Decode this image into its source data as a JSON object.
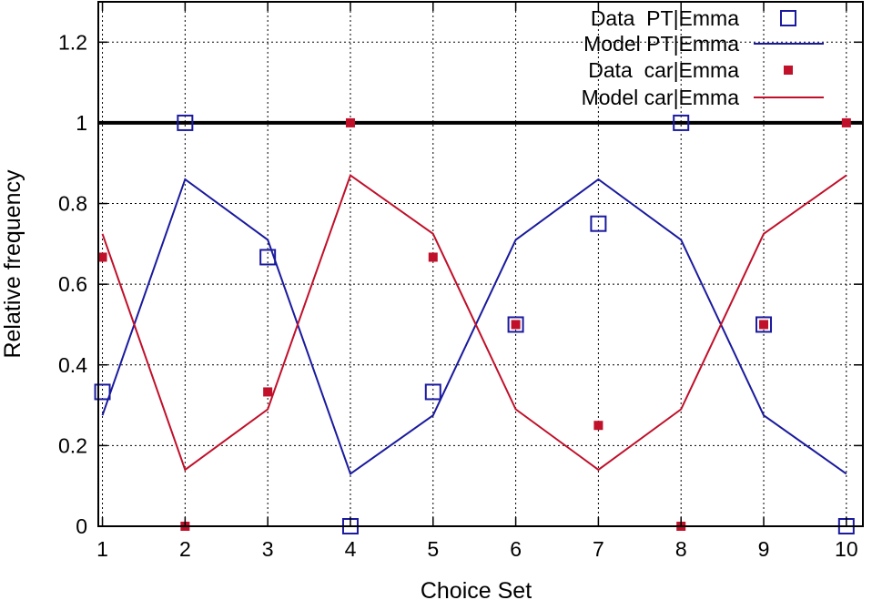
{
  "chart_data": {
    "type": "line",
    "xlabel": "Choice Set",
    "ylabel": "Relative frequency",
    "xlim": [
      0.95,
      10.2
    ],
    "ylim": [
      0,
      1.3
    ],
    "xticks": [
      1,
      2,
      3,
      4,
      5,
      6,
      7,
      8,
      9,
      10
    ],
    "yticks": [
      0,
      0.2,
      0.4,
      0.6,
      0.8,
      1,
      1.2
    ],
    "ytick_labels": [
      "0",
      "0.2",
      "0.4",
      "0.6",
      "0.8",
      "1",
      "1.2"
    ],
    "grid": true,
    "legend_position": "top-right",
    "reference_line": {
      "y": 1,
      "color": "#000000"
    },
    "series": [
      {
        "name": "Data  PT|Emma",
        "kind": "scatter",
        "marker": "open-square",
        "color": "#1a1a9e",
        "x": [
          1,
          2,
          3,
          4,
          5,
          6,
          7,
          8,
          9,
          10
        ],
        "y": [
          0.333,
          1.0,
          0.667,
          0.0,
          0.333,
          0.5,
          0.75,
          1.0,
          0.5,
          0.0
        ]
      },
      {
        "name": "Model PT|Emma",
        "kind": "line",
        "color": "#1a1a9e",
        "x": [
          1,
          2,
          3,
          4,
          5,
          6,
          7,
          8,
          9,
          10
        ],
        "y": [
          0.275,
          0.86,
          0.71,
          0.13,
          0.275,
          0.71,
          0.86,
          0.71,
          0.275,
          0.13
        ]
      },
      {
        "name": "Data  car|Emma",
        "kind": "scatter",
        "marker": "filled-square",
        "color": "#c0102a",
        "x": [
          1,
          2,
          3,
          4,
          5,
          6,
          7,
          8,
          9,
          10
        ],
        "y": [
          0.667,
          0.0,
          0.333,
          1.0,
          0.667,
          0.5,
          0.25,
          0.0,
          0.5,
          1.0
        ]
      },
      {
        "name": "Model car|Emma",
        "kind": "line",
        "color": "#c0102a",
        "x": [
          1,
          2,
          3,
          4,
          5,
          6,
          7,
          8,
          9,
          10
        ],
        "y": [
          0.725,
          0.14,
          0.29,
          0.87,
          0.725,
          0.29,
          0.14,
          0.29,
          0.725,
          0.87
        ]
      }
    ]
  }
}
